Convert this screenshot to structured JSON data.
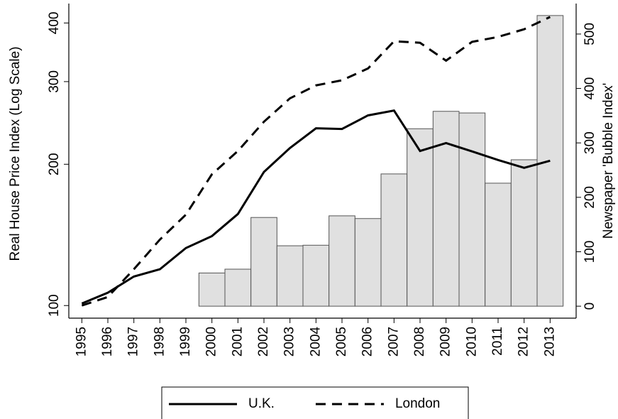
{
  "chart_data": {
    "type": "line",
    "ylabel": "Real House Price Index (Log Scale)",
    "y2label": "Newspaper 'Bubble Index'",
    "x": [
      1995,
      1996,
      1997,
      1998,
      1999,
      2000,
      2001,
      2002,
      2003,
      2004,
      2005,
      2006,
      2007,
      2008,
      2009,
      2010,
      2011,
      2012,
      2013
    ],
    "xlim": [
      1994.5,
      2014
    ],
    "xticks": [
      1995,
      1996,
      1997,
      1998,
      1999,
      2000,
      2001,
      2002,
      2003,
      2004,
      2005,
      2006,
      2007,
      2008,
      2009,
      2010,
      2011,
      2012,
      2013
    ],
    "yscale": "log",
    "ylim": [
      94,
      440
    ],
    "yticks": [
      100,
      200,
      300,
      400
    ],
    "y2lim": [
      -22,
      556
    ],
    "y2ticks": [
      0,
      100,
      200,
      300,
      400,
      500
    ],
    "legend": "bottom",
    "series": [
      {
        "name": "U.K.",
        "type": "line",
        "color": "#000000",
        "dash": "solid",
        "values": [
          101,
          106.5,
          115.3,
          119.5,
          132.6,
          140.6,
          156.7,
          192.6,
          216.6,
          238.6,
          237.8,
          254.2,
          260.3,
          213.5,
          221.9,
          213,
          204.2,
          196.5,
          203.5
        ]
      },
      {
        "name": "London",
        "type": "line",
        "color": "#000000",
        "dash": "dashed",
        "values": [
          100,
          104.3,
          119.5,
          138.2,
          156.2,
          190.4,
          213.5,
          246.4,
          276.4,
          294.5,
          302,
          320,
          365.7,
          363,
          332.5,
          364.6,
          373.6,
          387.9,
          412
        ]
      },
      {
        "type": "bar",
        "axis": "y2",
        "color": "#e0e0e0",
        "values": [
          null,
          null,
          null,
          null,
          null,
          61,
          68,
          163,
          111,
          112,
          166,
          161,
          243,
          326,
          358,
          355,
          226,
          269,
          534
        ]
      }
    ]
  }
}
